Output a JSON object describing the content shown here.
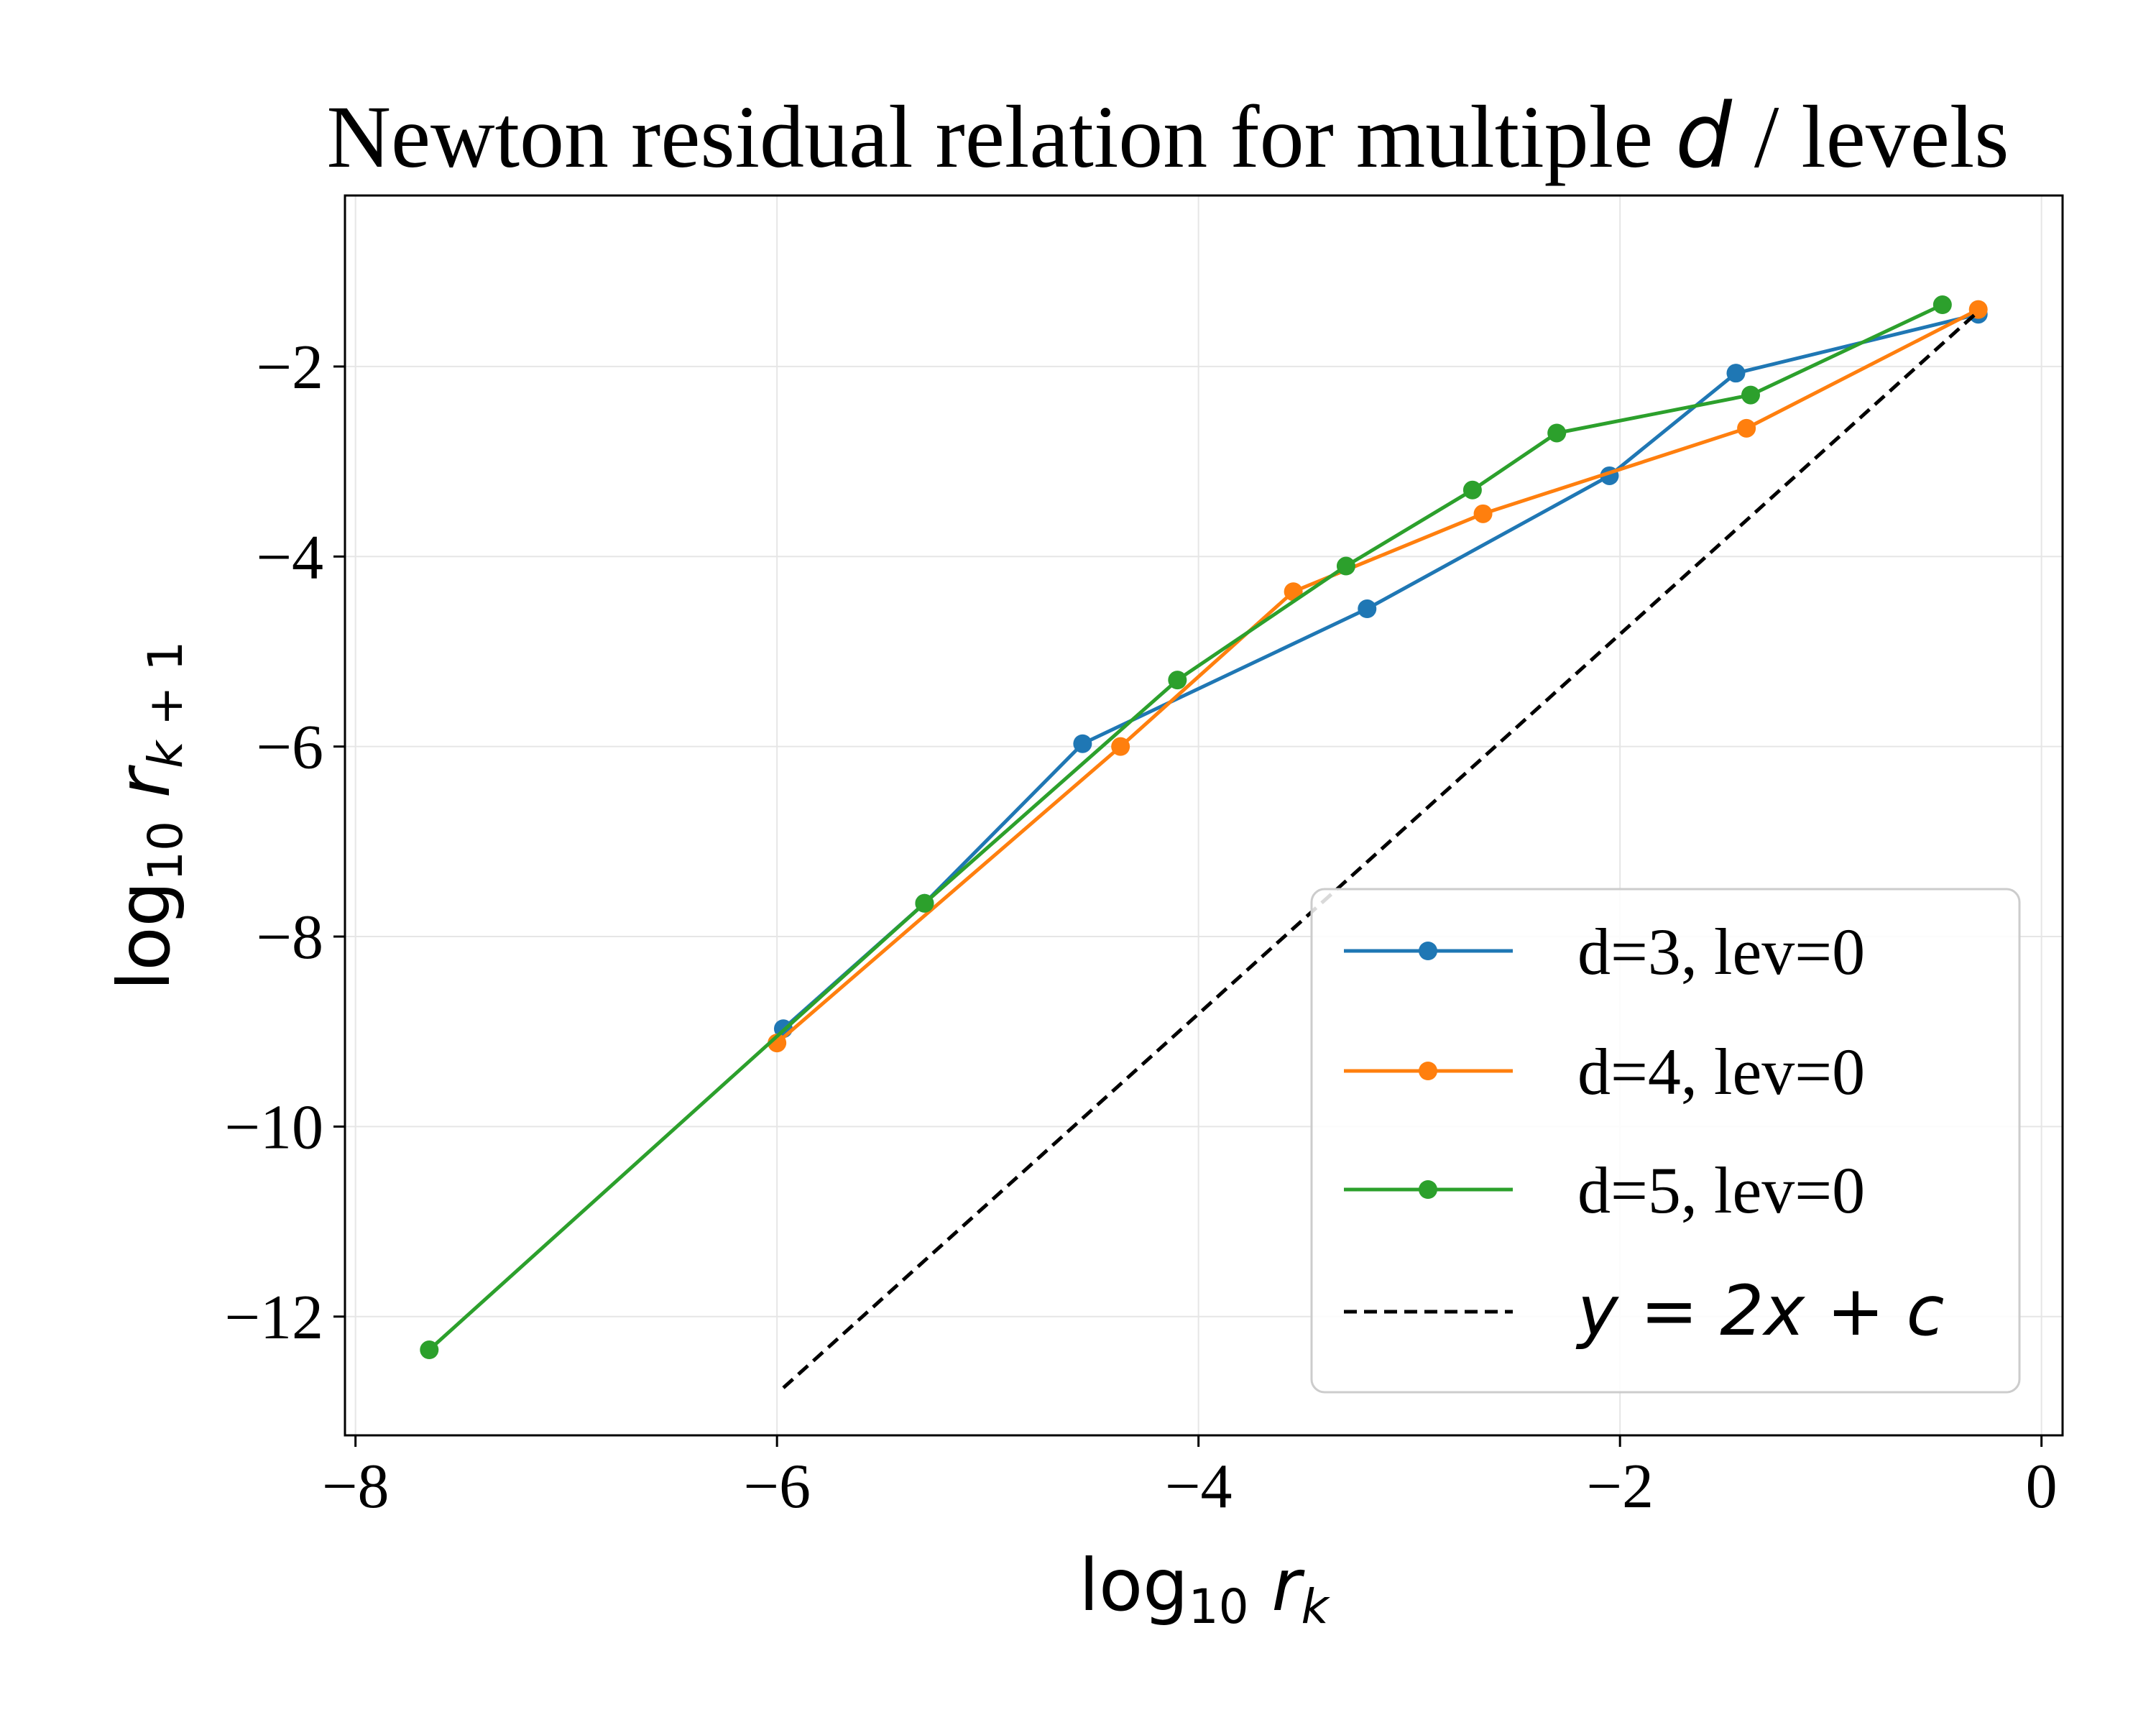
{
  "chart_data": {
    "type": "line",
    "title_prefix": "Newton residual relation for multiple ",
    "title_math": "d",
    "title_suffix": " / levels",
    "xlabel": "log10 r_k",
    "ylabel": "log10 r_{k+1}",
    "xlim": [
      -8.05,
      0.1
    ],
    "ylim": [
      -13.25,
      -0.2
    ],
    "xticks": [
      -8,
      -6,
      -4,
      -2,
      0
    ],
    "xtick_labels": [
      "−8",
      "−6",
      "−4",
      "−2",
      "0"
    ],
    "yticks": [
      -12,
      -10,
      -8,
      -6,
      -4,
      -2
    ],
    "ytick_labels": [
      "−12",
      "−10",
      "−8",
      "−6",
      "−4",
      "−2"
    ],
    "grid": true,
    "legend_position": "lower-right",
    "series": [
      {
        "name": "d=3, lev=0",
        "color": "#1f77b4",
        "marker": "circle",
        "x": [
          -0.3,
          -1.45,
          -2.05,
          -3.2,
          -4.55,
          -5.3,
          -5.97
        ],
        "y": [
          -1.45,
          -2.07,
          -3.15,
          -4.55,
          -5.97,
          -7.65,
          -8.97
        ]
      },
      {
        "name": "d=4, lev=0",
        "color": "#ff7f0e",
        "marker": "circle",
        "x": [
          -0.3,
          -1.4,
          -2.65,
          -3.55,
          -4.37,
          -6.0
        ],
        "y": [
          -1.4,
          -2.65,
          -3.55,
          -4.37,
          -6.0,
          -9.12
        ]
      },
      {
        "name": "d=5, lev=0",
        "color": "#2ca02c",
        "marker": "circle",
        "x": [
          -0.47,
          -1.38,
          -2.3,
          -2.7,
          -3.3,
          -4.1,
          -5.3,
          -7.65
        ],
        "y": [
          -1.35,
          -2.3,
          -2.7,
          -3.3,
          -4.1,
          -5.3,
          -7.65,
          -12.35
        ]
      },
      {
        "name": "y = 2x + c",
        "color": "#000000",
        "style": "dashed",
        "x": [
          -5.97,
          -0.3
        ],
        "y": [
          -12.75,
          -1.42
        ]
      }
    ],
    "legend_labels": [
      "d=3, lev=0",
      "d=4, lev=0",
      "d=5, lev=0"
    ],
    "legend_math_label": "y = 2x + c"
  }
}
